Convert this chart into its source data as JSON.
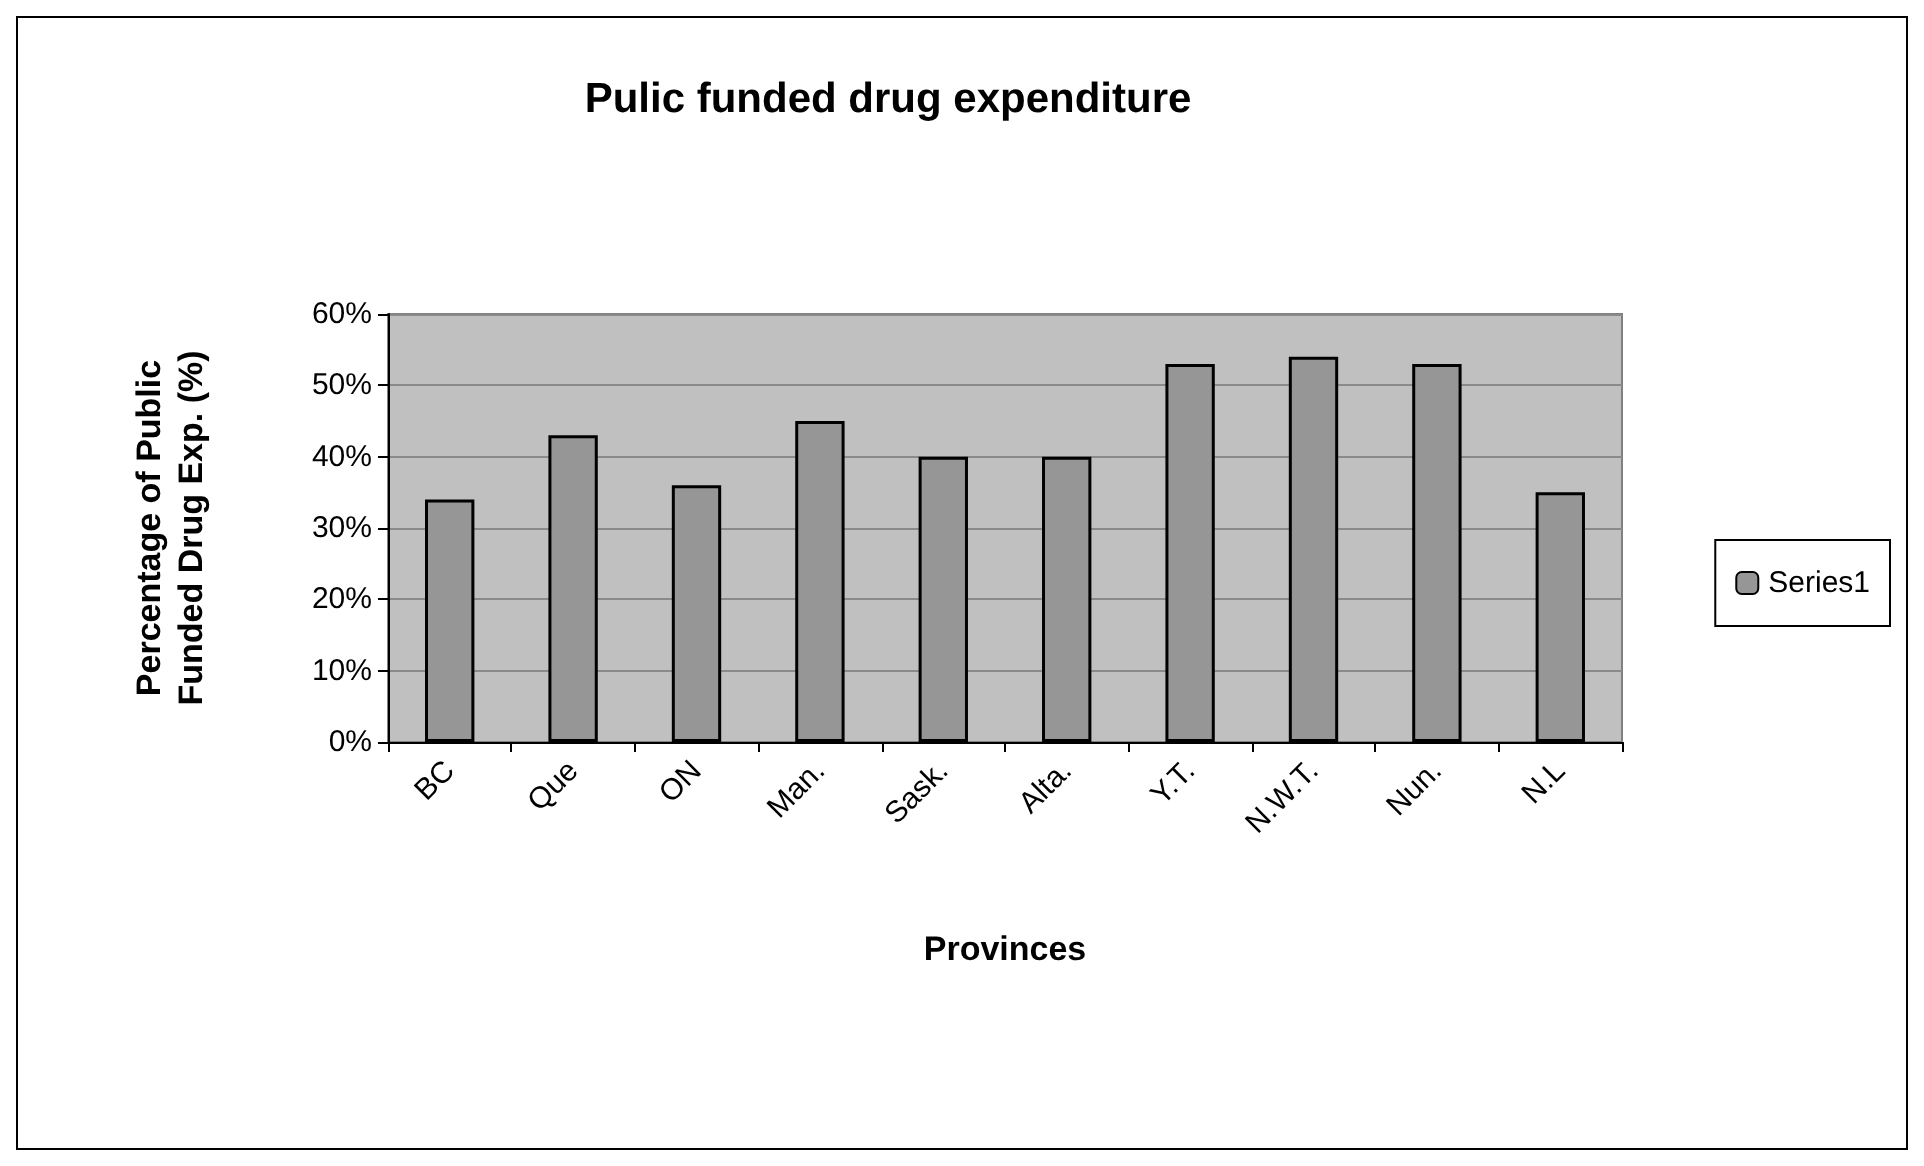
{
  "chart_data": {
    "type": "bar",
    "title": "Pulic funded drug expenditure",
    "xlabel": "Provinces",
    "ylabel": "Percentage of Public\nFunded Drug Exp. (%)",
    "categories": [
      "BC",
      "Que",
      "ON",
      "Man.",
      "Sask.",
      "Alta.",
      "Y.T.",
      "N.W.T.",
      "Nun.",
      "N.L"
    ],
    "series": [
      {
        "name": "Series1",
        "color": "#969696",
        "values": [
          34,
          43,
          36,
          45,
          40,
          40,
          53,
          54,
          53,
          35
        ]
      }
    ],
    "ylim": [
      0,
      60
    ],
    "yticks": [
      {
        "value": 0,
        "label": "0%"
      },
      {
        "value": 10,
        "label": "10%"
      },
      {
        "value": 20,
        "label": "20%"
      },
      {
        "value": 30,
        "label": "30%"
      },
      {
        "value": 40,
        "label": "40%"
      },
      {
        "value": 50,
        "label": "50%"
      },
      {
        "value": 60,
        "label": "60%"
      }
    ],
    "grid": "y",
    "legend": "right"
  }
}
